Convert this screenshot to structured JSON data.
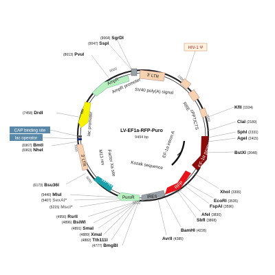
{
  "plasmid": {
    "name": "LV-EF1a-RFP-Puro",
    "length": "9494 bp"
  },
  "ring_ticks": [
    "9000",
    "1000",
    "2000",
    "3000",
    "4000",
    "5000",
    "6000",
    "7000"
  ],
  "features": [
    {
      "label": "3' LTR",
      "color": "#f7d2b0"
    },
    {
      "label": "HIV-1 Ψ",
      "color": "#f7d2b0"
    },
    {
      "label": "RRE",
      "color": "#f7d2b0"
    },
    {
      "label": "cPPT/CTS",
      "color": "#f7d2b0"
    },
    {
      "label": "EF-1α promoter",
      "color": "#8b0a0a"
    },
    {
      "label": "RFP",
      "color": "#e8141b"
    },
    {
      "label": "IRES",
      "color": "#9aa0a8"
    },
    {
      "label": "PuroR",
      "color": "#b8f0c0"
    },
    {
      "label": "WPRE",
      "color": "#1aa0a8"
    },
    {
      "label": "3' LTR",
      "color": "#f7d2b0"
    },
    {
      "label": "ori",
      "color": "#f7f200"
    },
    {
      "label": "AmpR",
      "color": "#b8f0c0"
    },
    {
      "label": "SV40 poly(A) signal",
      "color": "#cccccc"
    },
    {
      "label": "AmpR promoter",
      "color": "#cccccc"
    },
    {
      "label": "lac promoter",
      "color": "#cccccc"
    },
    {
      "label": "M13 rev",
      "color": "#cccccc"
    },
    {
      "label": "Factor Xa site",
      "color": "#cccccc"
    },
    {
      "label": "EF-1α intron A",
      "color": "#111111"
    },
    {
      "label": "Kozak sequence",
      "color": "#111111"
    }
  ],
  "boxed_labels": [
    "CAP binding site",
    "lac operator"
  ],
  "sites": [
    {
      "name": "SgrDI",
      "pos": "(9064)"
    },
    {
      "name": "SspI",
      "pos": "(9047)"
    },
    {
      "name": "PvuI",
      "pos": "(8613)"
    },
    {
      "name": "DrdI",
      "pos": "(7458)"
    },
    {
      "name": "BmtI",
      "pos": "(6967)"
    },
    {
      "name": "NheI",
      "pos": "(6963)"
    },
    {
      "name": "Bsu36I",
      "pos": "(6173)"
    },
    {
      "name": "MluI",
      "pos": "(5440)"
    },
    {
      "name": "SexAI*",
      "pos": "(5407)"
    },
    {
      "name": "MscI*",
      "pos": "(5215)"
    },
    {
      "name": "RsrII",
      "pos": "(4956)"
    },
    {
      "name": "BsiWI",
      "pos": "(4896)"
    },
    {
      "name": "SmaI",
      "pos": "(4891)"
    },
    {
      "name": "XmaI",
      "pos": "(4889)"
    },
    {
      "name": "Tth111I",
      "pos": "(4882)"
    },
    {
      "name": "BmgBI",
      "pos": "(4777)"
    },
    {
      "name": "AvrII",
      "pos": "(4385)"
    },
    {
      "name": "BamHI",
      "pos": "(4226)"
    },
    {
      "name": "SbfI",
      "pos": "(3868)"
    },
    {
      "name": "AfeI",
      "pos": "(3830)"
    },
    {
      "name": "FspAI",
      "pos": "(3596)"
    },
    {
      "name": "EcoRI",
      "pos": "(3535)"
    },
    {
      "name": "XhoI",
      "pos": "(3306)"
    },
    {
      "name": "BstXI",
      "pos": "(2648)"
    },
    {
      "name": "AgeI",
      "pos": "(2415)"
    },
    {
      "name": "SphI",
      "pos": "(2331)"
    },
    {
      "name": "ClaI",
      "pos": "(2180)"
    },
    {
      "name": "KflI",
      "pos": "(1934)"
    }
  ]
}
